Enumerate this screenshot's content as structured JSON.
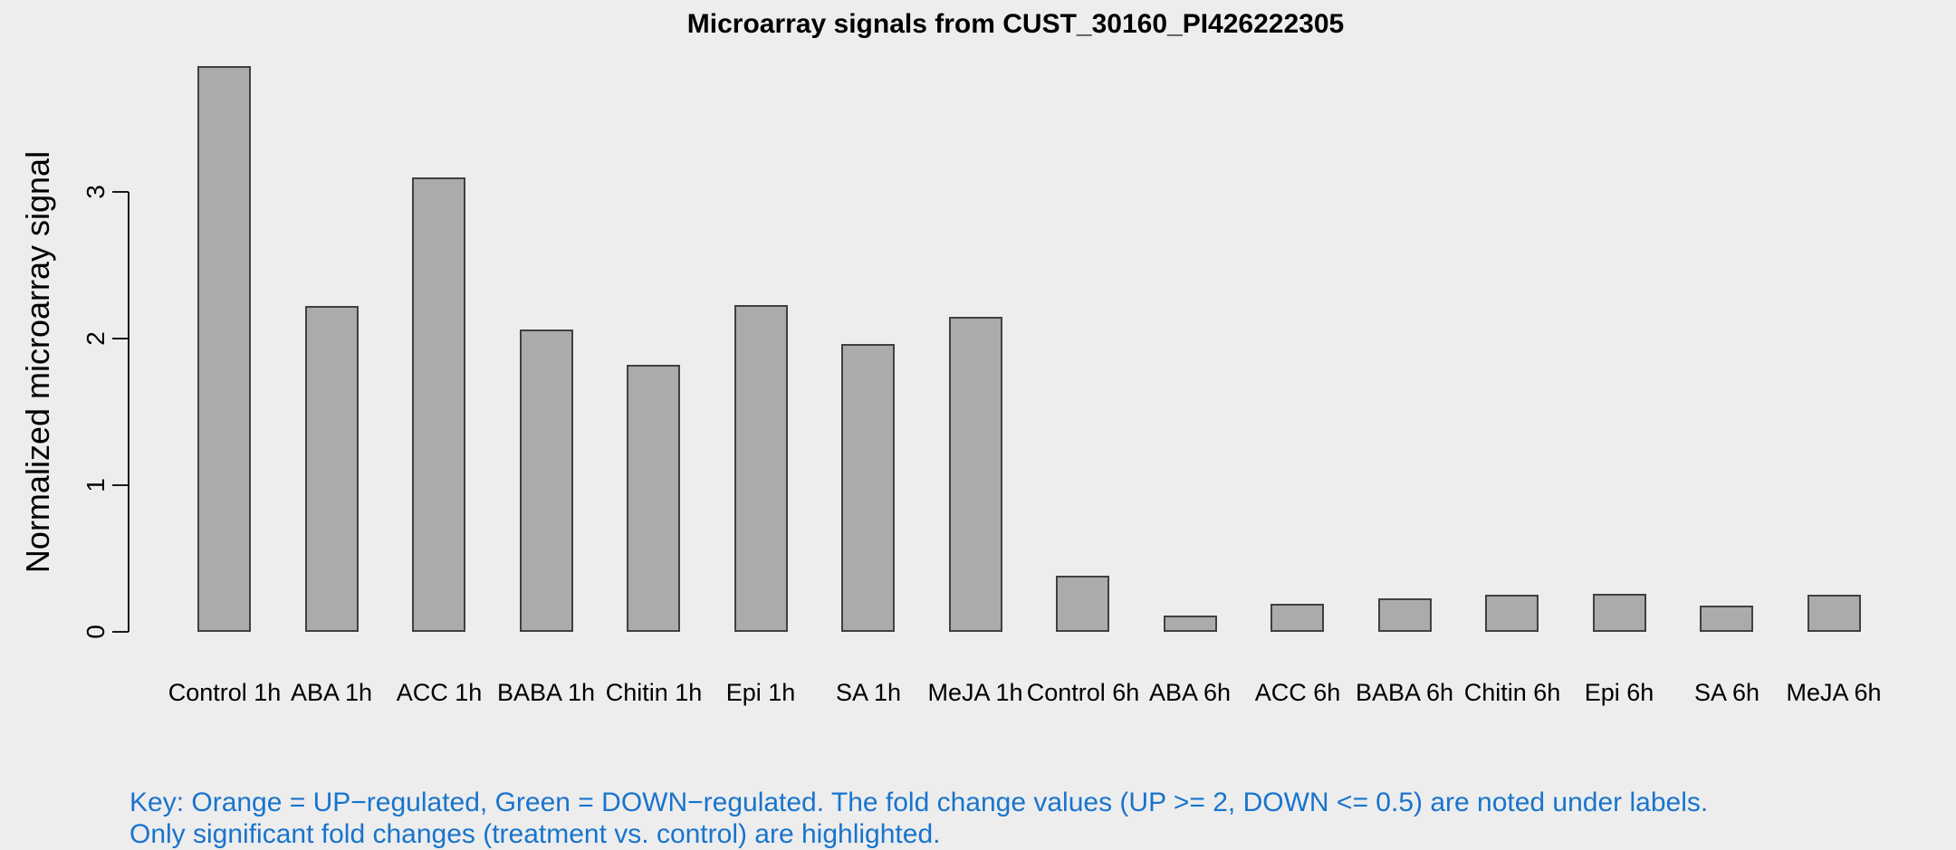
{
  "chart_data": {
    "type": "bar",
    "title": "Microarray signals from CUST_30160_PI426222305",
    "xlabel": "",
    "ylabel": "Normalized microarray signal",
    "categories": [
      "Control 1h",
      "ABA 1h",
      "ACC 1h",
      "BABA 1h",
      "Chitin 1h",
      "Epi 1h",
      "SA 1h",
      "MeJA 1h",
      "Control 6h",
      "ABA 6h",
      "ACC 6h",
      "BABA 6h",
      "Chitin 6h",
      "Epi 6h",
      "SA 6h",
      "MeJA 6h"
    ],
    "values": [
      3.86,
      2.22,
      3.1,
      2.06,
      1.82,
      2.23,
      1.96,
      2.15,
      0.38,
      0.11,
      0.19,
      0.23,
      0.25,
      0.26,
      0.18,
      0.25
    ],
    "yticks": [
      0,
      1,
      2,
      3
    ],
    "ylim": [
      0,
      4
    ],
    "grid": false,
    "legend_position": "none",
    "colors": {
      "background": "#EDEDED",
      "bar_fill": "#ABABAB",
      "bar_border": "#404040",
      "axis": "#1a1a1a",
      "text": "#000000"
    }
  },
  "footnote": {
    "line1": "Key: Orange = UP−regulated, Green = DOWN−regulated. The fold change values (UP >= 2, DOWN <= 0.5) are noted under labels.",
    "line2": "Only significant fold changes (treatment vs. control) are highlighted.",
    "color": "#1874CD"
  }
}
